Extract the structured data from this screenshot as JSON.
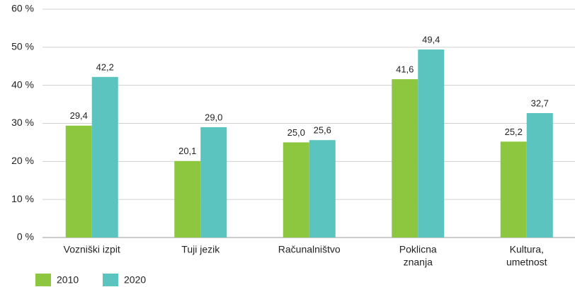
{
  "chart_data": {
    "type": "bar",
    "categories": [
      [
        "Vozniški izpit"
      ],
      [
        "Tuji jezik"
      ],
      [
        "Računalništvo"
      ],
      [
        "Poklicna",
        "znanja"
      ],
      [
        "Kultura,",
        "umetnost"
      ]
    ],
    "series": [
      {
        "name": "2010",
        "color": "#8dc63f",
        "values": [
          29.4,
          20.1,
          25.0,
          41.6,
          25.2
        ],
        "value_labels": [
          "29,4",
          "20,1",
          "25,0",
          "41,6",
          "25,2"
        ]
      },
      {
        "name": "2020",
        "color": "#5bc4bf",
        "values": [
          42.2,
          29.0,
          25.6,
          49.4,
          32.7
        ],
        "value_labels": [
          "42,2",
          "29,0",
          "25,6",
          "49,4",
          "32,7"
        ]
      }
    ],
    "ylim": [
      0,
      60
    ],
    "yticks": [
      {
        "value": 0,
        "label": "0 %"
      },
      {
        "value": 10,
        "label": "10 %"
      },
      {
        "value": 20,
        "label": "20 %"
      },
      {
        "value": 30,
        "label": "30 %"
      },
      {
        "value": 40,
        "label": "40 %"
      },
      {
        "value": 50,
        "label": "50 %"
      },
      {
        "value": 60,
        "label": "60 %"
      }
    ],
    "grid": true,
    "legend": "bottom-left"
  }
}
